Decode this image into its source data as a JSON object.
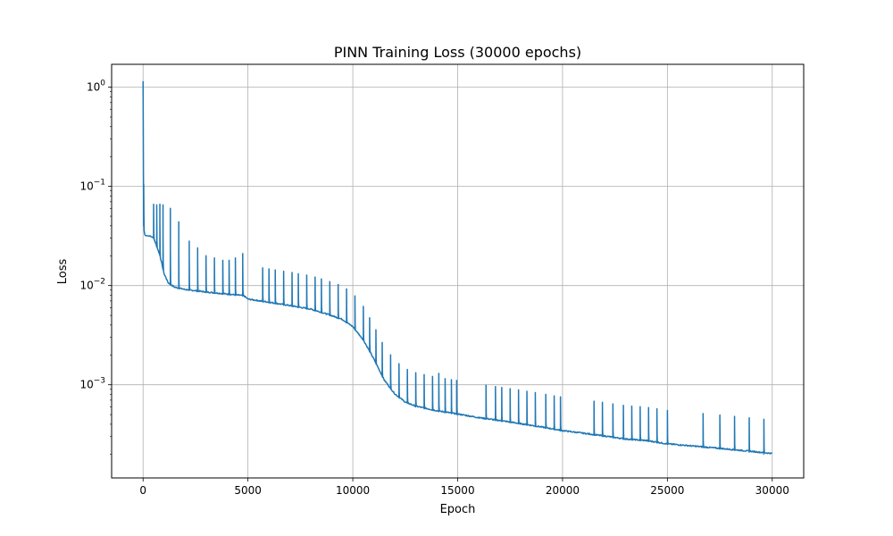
{
  "chart_data": {
    "type": "line",
    "title": "PINN Training Loss (30000 epochs)",
    "xlabel": "Epoch",
    "ylabel": "Loss",
    "xlim": [
      -1500,
      31500
    ],
    "ylim": [
      0.000115,
      1.7
    ],
    "yscale": "log",
    "grid": true,
    "color": "#1f77b4",
    "xticks": [
      0,
      5000,
      10000,
      15000,
      20000,
      25000,
      30000
    ],
    "xtick_labels": [
      "0",
      "5000",
      "10000",
      "15000",
      "20000",
      "25000",
      "30000"
    ],
    "yticks": [
      {
        "value": 1,
        "base": "10",
        "exp": "0"
      },
      {
        "value": 0.1,
        "base": "10",
        "exp": "−1"
      },
      {
        "value": 0.01,
        "base": "10",
        "exp": "−2"
      },
      {
        "value": 0.001,
        "base": "10",
        "exp": "−3"
      }
    ],
    "baseline": [
      [
        0,
        1.15
      ],
      [
        10,
        0.12
      ],
      [
        30,
        0.04
      ],
      [
        60,
        0.034
      ],
      [
        100,
        0.032
      ],
      [
        300,
        0.0315
      ],
      [
        500,
        0.03
      ],
      [
        800,
        0.02
      ],
      [
        1000,
        0.013
      ],
      [
        1200,
        0.0105
      ],
      [
        1500,
        0.0095
      ],
      [
        2000,
        0.009
      ],
      [
        3000,
        0.0085
      ],
      [
        4000,
        0.0081
      ],
      [
        4800,
        0.0078
      ],
      [
        5000,
        0.0072
      ],
      [
        6000,
        0.0067
      ],
      [
        7000,
        0.0062
      ],
      [
        8000,
        0.0057
      ],
      [
        8500,
        0.0053
      ],
      [
        9000,
        0.0049
      ],
      [
        9500,
        0.0045
      ],
      [
        10000,
        0.0038
      ],
      [
        10500,
        0.0028
      ],
      [
        11000,
        0.0018
      ],
      [
        11500,
        0.0011
      ],
      [
        12000,
        0.0008
      ],
      [
        12500,
        0.00066
      ],
      [
        13000,
        0.0006
      ],
      [
        14000,
        0.00054
      ],
      [
        15000,
        0.0005
      ],
      [
        16000,
        0.00046
      ],
      [
        17000,
        0.00043
      ],
      [
        18000,
        0.0004
      ],
      [
        19000,
        0.00037
      ],
      [
        20000,
        0.00034
      ],
      [
        21000,
        0.00032
      ],
      [
        22000,
        0.0003
      ],
      [
        23000,
        0.00028
      ],
      [
        24000,
        0.00027
      ],
      [
        25000,
        0.00025
      ],
      [
        26000,
        0.00024
      ],
      [
        27000,
        0.00023
      ],
      [
        28000,
        0.00022
      ],
      [
        29000,
        0.00021
      ],
      [
        30000,
        0.0002
      ]
    ],
    "spikes": [
      [
        30,
        0.105
      ],
      [
        500,
        0.048
      ],
      [
        650,
        0.065
      ],
      [
        800,
        0.066
      ],
      [
        950,
        0.065
      ],
      [
        1300,
        0.06
      ],
      [
        1700,
        0.044
      ],
      [
        2200,
        0.028
      ],
      [
        2600,
        0.024
      ],
      [
        3000,
        0.02
      ],
      [
        3400,
        0.019
      ],
      [
        3800,
        0.018
      ],
      [
        4100,
        0.018
      ],
      [
        4400,
        0.019
      ],
      [
        4750,
        0.021
      ],
      [
        5700,
        0.0085
      ],
      [
        6000,
        0.01
      ],
      [
        6300,
        0.0096
      ],
      [
        6700,
        0.0095
      ],
      [
        7100,
        0.009
      ],
      [
        7400,
        0.0096
      ],
      [
        7800,
        0.008
      ],
      [
        8200,
        0.0072
      ],
      [
        8500,
        0.0068
      ],
      [
        8900,
        0.006
      ],
      [
        9300,
        0.0055
      ],
      [
        9700,
        0.0047
      ],
      [
        10100,
        0.0037
      ],
      [
        10500,
        0.0028
      ],
      [
        10800,
        0.0025
      ],
      [
        11100,
        0.002
      ],
      [
        11400,
        0.0017
      ],
      [
        11800,
        0.0014
      ],
      [
        12200,
        0.0014
      ],
      [
        12600,
        0.0012
      ],
      [
        13000,
        0.0012
      ],
      [
        13400,
        0.0011
      ],
      [
        13800,
        0.0012
      ],
      [
        14100,
        0.0013
      ],
      [
        14400,
        0.0011
      ],
      [
        14700,
        0.0011
      ],
      [
        14950,
        0.0006
      ],
      [
        16350,
        0.00068
      ],
      [
        16800,
        0.00058
      ],
      [
        17100,
        0.00063
      ],
      [
        17500,
        0.00058
      ],
      [
        17900,
        0.00055
      ],
      [
        18300,
        0.00052
      ],
      [
        18700,
        0.0005
      ],
      [
        19200,
        0.0004
      ],
      [
        19600,
        0.00042
      ],
      [
        19900,
        0.00035
      ],
      [
        21500,
        0.00034
      ],
      [
        21900,
        0.00036
      ],
      [
        22400,
        0.00033
      ],
      [
        22900,
        0.00033
      ],
      [
        23300,
        0.00034
      ],
      [
        23700,
        0.00031
      ],
      [
        24100,
        0.00031
      ],
      [
        24500,
        0.00028
      ],
      [
        25000,
        0.00026
      ],
      [
        26700,
        0.00024
      ],
      [
        27500,
        0.00023
      ],
      [
        28200,
        0.00022
      ],
      [
        28900,
        0.00021
      ],
      [
        29600,
        0.0002
      ]
    ]
  }
}
